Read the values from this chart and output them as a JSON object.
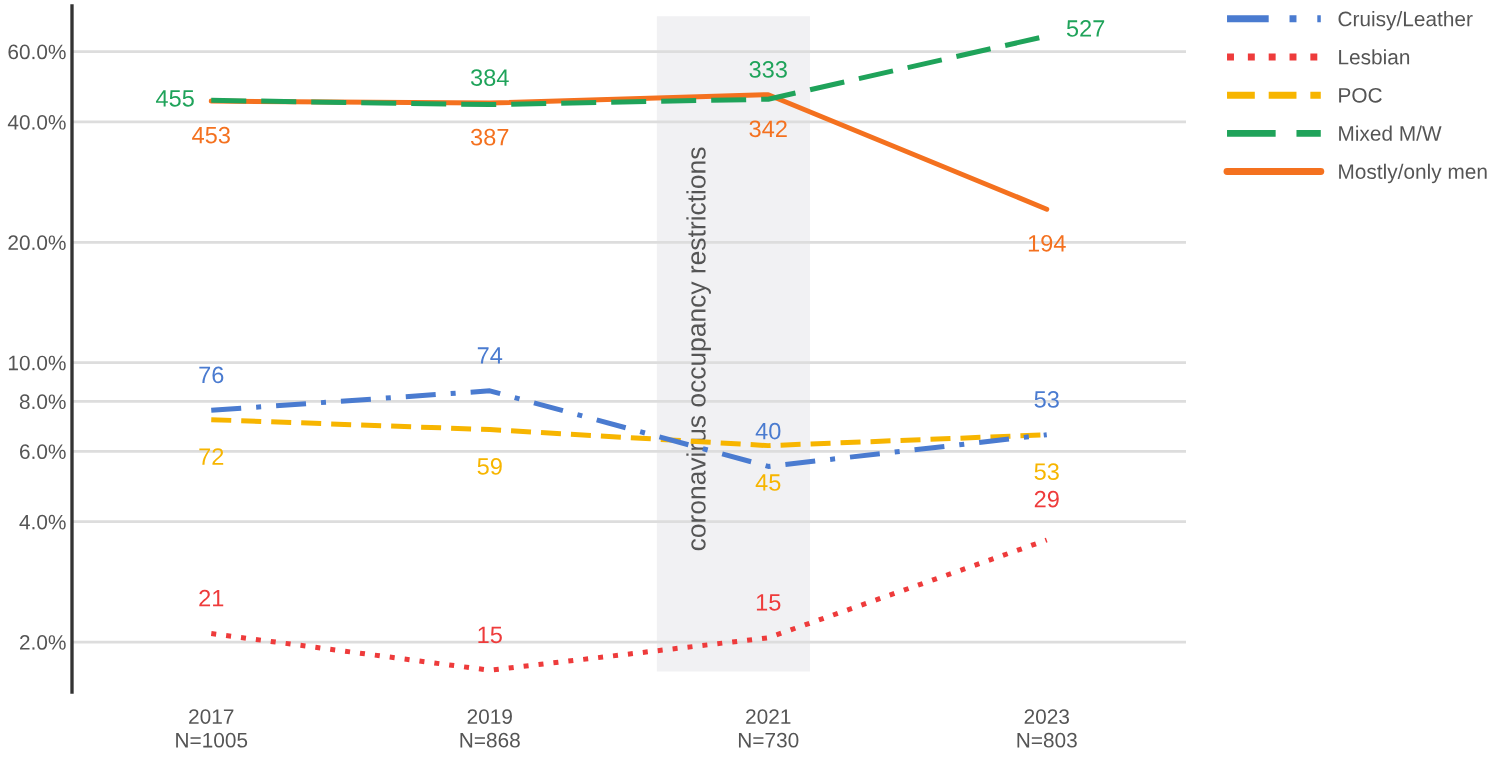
{
  "chart_data": {
    "type": "line",
    "x": [
      2017,
      2019,
      2021,
      2023
    ],
    "xlim": [
      2016,
      2024
    ],
    "xticks": [
      2017,
      2019,
      2021,
      2023
    ],
    "log": "y",
    "ylim": [
      1.5,
      78
    ],
    "yticks": [
      {
        "value": 2,
        "label": "2.0%"
      },
      {
        "value": 4,
        "label": "4.0%"
      },
      {
        "value": 6,
        "label": "6.0%"
      },
      {
        "value": 8,
        "label": "8.0%"
      },
      {
        "value": 10,
        "label": "10.0%"
      },
      {
        "value": 20,
        "label": "20.0%"
      },
      {
        "value": 40,
        "label": "40.0%"
      },
      {
        "value": 60,
        "label": "60.0%"
      }
    ],
    "grid": "y",
    "legend": "right",
    "marker": "none",
    "series": [
      {
        "name": "Cruisy/Leather",
        "color": "#4a7bd0",
        "line_style": "dashdot",
        "values": [
          7.6,
          8.5,
          5.5,
          6.6
        ]
      },
      {
        "name": "Lesbian",
        "color": "#ee3b3b",
        "line_style": "dotted",
        "values": [
          2.1,
          1.7,
          2.05,
          3.6
        ]
      },
      {
        "name": "POC",
        "color": "#f7b500",
        "line_style": "dashed",
        "values": [
          7.2,
          6.8,
          6.2,
          6.6
        ]
      },
      {
        "name": "Mixed M/W",
        "color": "#1fa35a",
        "line_style": "longdash",
        "values": [
          45.3,
          44.2,
          45.6,
          65.6
        ]
      },
      {
        "name": "Mostly/only men",
        "color": "#f4711f",
        "line_style": "solid",
        "values": [
          45.1,
          44.6,
          46.8,
          24.2
        ]
      }
    ],
    "annotations": [
      "N=1005",
      "N=868",
      "N=730",
      "N=803",
      {
        "text": "76",
        "x": 2017,
        "y": 7.6
      },
      {
        "text": "74",
        "x": 2019,
        "y": 8.5
      },
      {
        "text": "40",
        "x": 2021,
        "y": 5.5
      },
      {
        "text": "53",
        "x": 2023,
        "y": 6.6
      },
      {
        "text": "21",
        "x": 2017,
        "y": 2.1
      },
      {
        "text": "15",
        "x": 2019,
        "y": 1.7
      },
      {
        "text": "15",
        "x": 2021,
        "y": 2.05
      },
      {
        "text": "29",
        "x": 2023,
        "y": 3.6
      },
      {
        "text": "72",
        "x": 2017,
        "y": 7.2
      },
      {
        "text": "59",
        "x": 2019,
        "y": 6.8
      },
      {
        "text": "45",
        "x": 2021,
        "y": 6.2
      },
      {
        "text": "53",
        "x": 2023,
        "y": 6.6
      },
      {
        "text": "455",
        "x": 2017,
        "y": 45.3
      },
      {
        "text": "384",
        "x": 2019,
        "y": 44.2
      },
      {
        "text": "333",
        "x": 2021,
        "y": 45.6
      },
      {
        "text": "527",
        "x": 2023,
        "y": 65.6
      },
      {
        "text": "453",
        "x": 2017,
        "y": 45.1
      },
      {
        "text": "387",
        "x": 2019,
        "y": 44.6
      },
      {
        "text": "342",
        "x": 2021,
        "y": 46.8
      },
      {
        "text": "194",
        "x": 2023,
        "y": 24.2
      }
    ],
    "bands": [
      {
        "axis": "x",
        "from": 2020.2,
        "to": 2021.3,
        "label": "coronavirus occupancy restrictions",
        "color": "#f1f1f3"
      }
    ]
  }
}
